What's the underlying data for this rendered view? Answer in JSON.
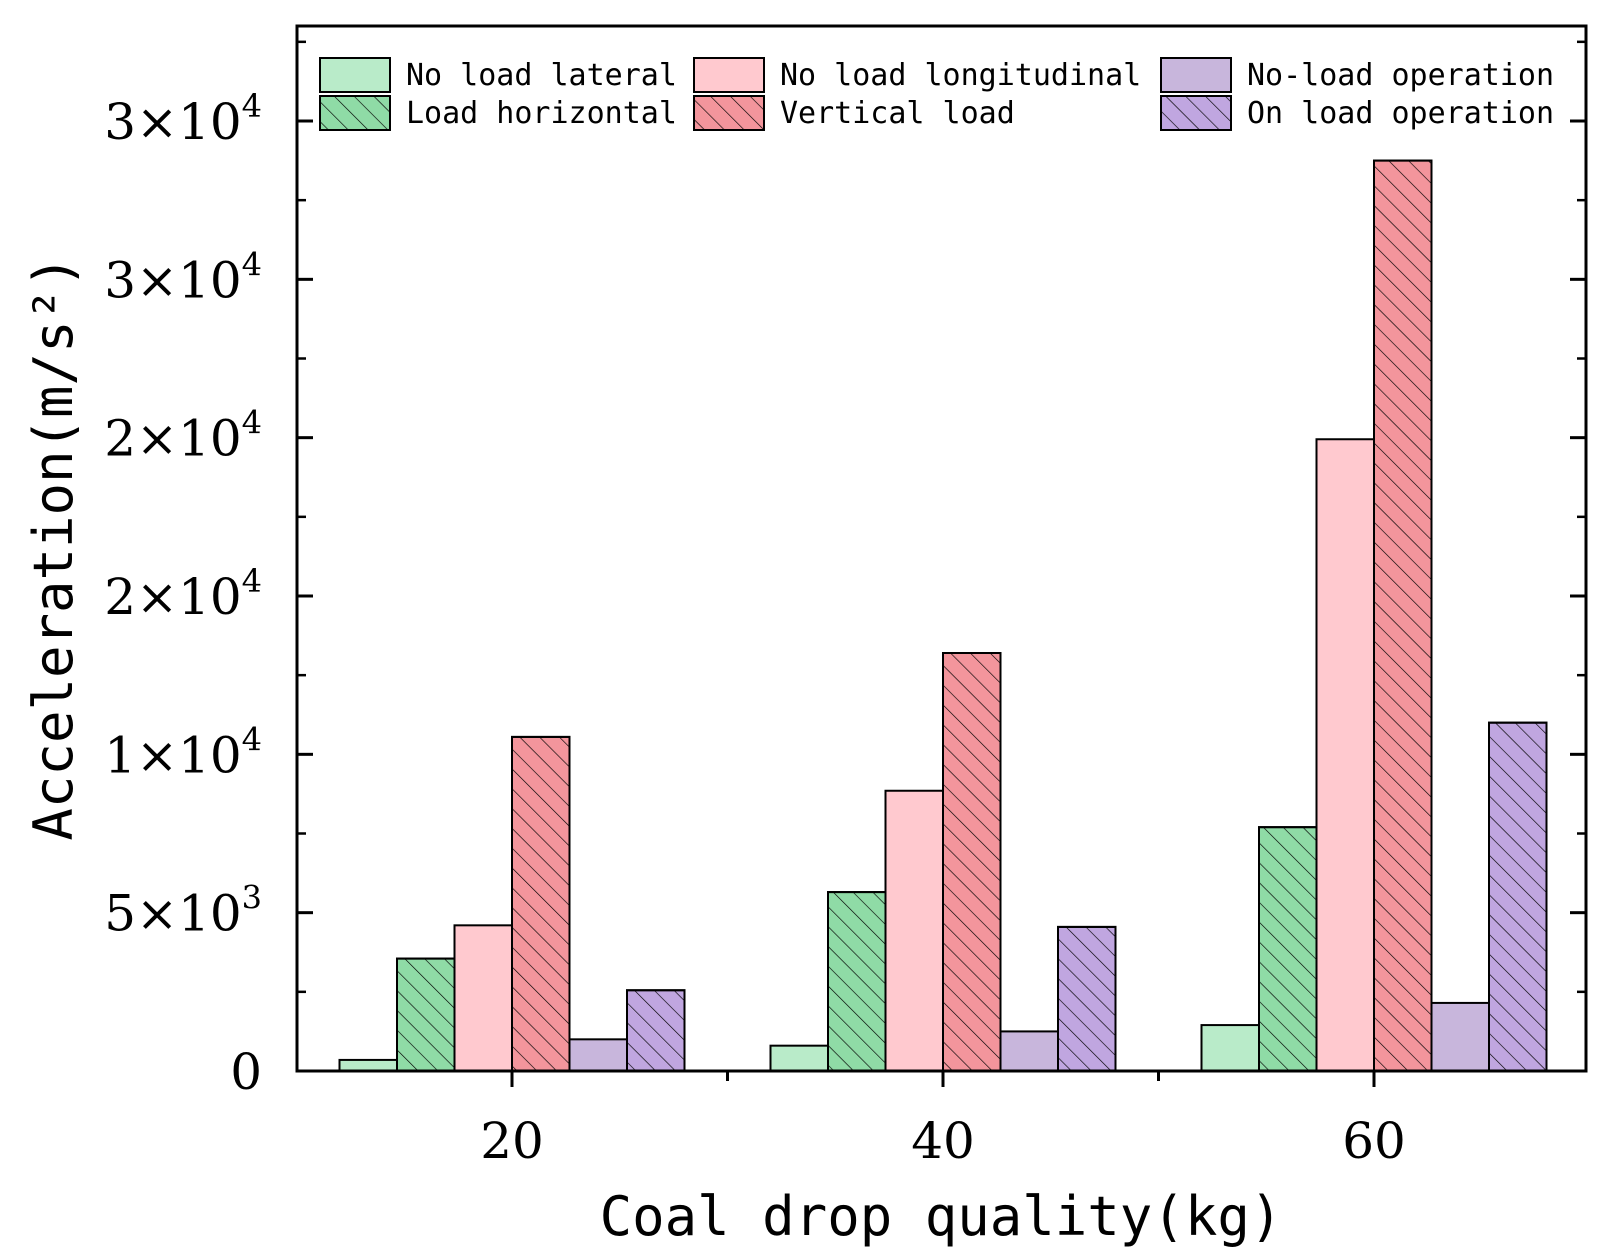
{
  "chart_data": {
    "type": "bar",
    "title": "",
    "xlabel": "Coal drop quality(kg)",
    "ylabel": "Acceleration(m/s²)",
    "ylim": [
      0,
      33000
    ],
    "categories": [
      "20",
      "40",
      "60"
    ],
    "yticks": [
      {
        "value": 0,
        "mantissa": "0",
        "exponent": ""
      },
      {
        "value": 5000,
        "mantissa": "5×10",
        "exponent": "3"
      },
      {
        "value": 10000,
        "mantissa": "1×10",
        "exponent": "4"
      },
      {
        "value": 15000,
        "mantissa": "2×10",
        "exponent": "4"
      },
      {
        "value": 20000,
        "mantissa": "2×10",
        "exponent": "4"
      },
      {
        "value": 25000,
        "mantissa": "3×10",
        "exponent": "4"
      },
      {
        "value": 30000,
        "mantissa": "3×10",
        "exponent": "4"
      }
    ],
    "series": [
      {
        "name": "No load lateral",
        "values": [
          350,
          800,
          1450
        ],
        "color": "#b9ebc9",
        "hatched": false
      },
      {
        "name": "Load horizontal",
        "values": [
          3550,
          5650,
          7700
        ],
        "color": "#8fdba6",
        "hatched": true
      },
      {
        "name": "No load longitudinal",
        "values": [
          4600,
          8850,
          19950
        ],
        "color": "#ffc9cf",
        "hatched": false
      },
      {
        "name": "Vertical load",
        "values": [
          10550,
          13200,
          28750
        ],
        "color": "#f3959c",
        "hatched": true
      },
      {
        "name": "No-load operation",
        "values": [
          1000,
          1250,
          2150
        ],
        "color": "#c8b6dc",
        "hatched": false
      },
      {
        "name": "On load operation",
        "values": [
          2550,
          4550,
          11000
        ],
        "color": "#c0a6e0",
        "hatched": true
      }
    ],
    "legend": {
      "position": "top",
      "columns": [
        [
          "No load lateral",
          "Load horizontal"
        ],
        [
          "No load longitudinal",
          "Vertical load"
        ],
        [
          "No-load operation",
          "On load operation"
        ]
      ]
    }
  }
}
